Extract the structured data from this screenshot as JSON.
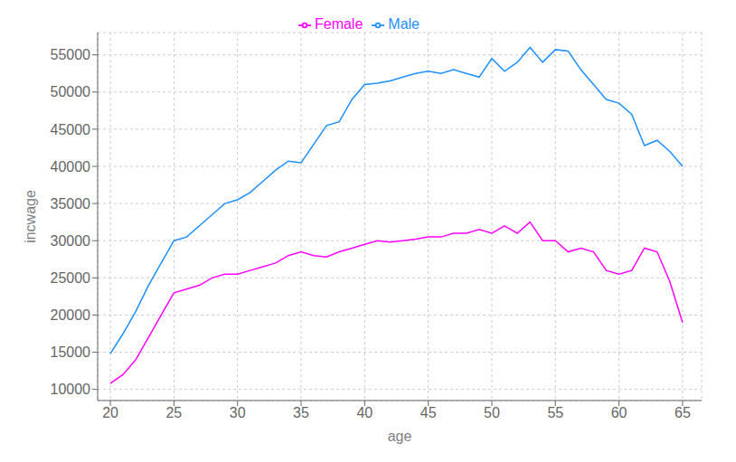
{
  "chart_data": {
    "type": "line",
    "xlabel": "age",
    "ylabel": "incwage",
    "x": [
      20,
      21,
      22,
      23,
      24,
      25,
      26,
      27,
      28,
      29,
      30,
      31,
      32,
      33,
      34,
      35,
      36,
      37,
      38,
      39,
      40,
      41,
      42,
      43,
      44,
      45,
      46,
      47,
      48,
      49,
      50,
      51,
      52,
      53,
      54,
      55,
      56,
      57,
      58,
      59,
      60,
      61,
      62,
      63,
      64,
      65
    ],
    "series": [
      {
        "name": "Male",
        "color": "#1E90FF",
        "values": [
          14800,
          17500,
          20500,
          24000,
          27000,
          30000,
          30500,
          32000,
          33500,
          35000,
          35500,
          36500,
          38000,
          39500,
          40700,
          40500,
          43000,
          45500,
          46000,
          49000,
          51000,
          51200,
          51500,
          52000,
          52500,
          52800,
          52500,
          53000,
          52500,
          52000,
          54500,
          52800,
          54000,
          56000,
          54000,
          55700,
          55500,
          53000,
          51000,
          49000,
          48500,
          47000,
          42800,
          43500,
          42000,
          40000
        ]
      },
      {
        "name": "Female",
        "color": "#FF00FF",
        "values": [
          10800,
          12000,
          14000,
          17000,
          20000,
          23000,
          23500,
          24000,
          25000,
          25500,
          25500,
          26000,
          26500,
          27000,
          28000,
          28500,
          28000,
          27800,
          28500,
          29000,
          29500,
          30000,
          29800,
          30000,
          30200,
          30500,
          30500,
          31000,
          31000,
          31500,
          31000,
          32000,
          31000,
          32500,
          30000,
          30000,
          28500,
          29000,
          28500,
          26000,
          25500,
          26000,
          29000,
          28500,
          24500,
          19000
        ]
      }
    ],
    "xlim": [
      19,
      66.5
    ],
    "ylim": [
      8500,
      58000
    ],
    "xticks": [
      20,
      25,
      30,
      35,
      40,
      45,
      50,
      55,
      60,
      65
    ],
    "yticks": [
      10000,
      15000,
      20000,
      25000,
      30000,
      35000,
      40000,
      45000,
      50000,
      55000
    ],
    "grid": true,
    "legend": "top"
  }
}
